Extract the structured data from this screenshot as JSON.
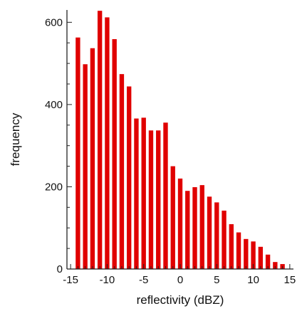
{
  "chart_data": {
    "type": "bar",
    "title": "",
    "xlabel": "reflectivity (dBZ)",
    "ylabel": "frequency",
    "xlim": [
      -15.5,
      15.5
    ],
    "ylim": [
      0,
      630
    ],
    "x_ticks": [
      -15,
      -10,
      -5,
      0,
      5,
      10,
      15
    ],
    "x_tick_labels": [
      "-15",
      "-10",
      "-5",
      "0",
      "5",
      "10",
      "15"
    ],
    "y_ticks": [
      0,
      200,
      400,
      600
    ],
    "y_tick_labels": [
      "0",
      "200",
      "400",
      "600"
    ],
    "bin_width": 1,
    "bar_color": "#e00000",
    "bins": [
      {
        "x": -14,
        "value": 563
      },
      {
        "x": -13,
        "value": 498
      },
      {
        "x": -12,
        "value": 537
      },
      {
        "x": -11,
        "value": 628
      },
      {
        "x": -10,
        "value": 612
      },
      {
        "x": -9,
        "value": 559
      },
      {
        "x": -8,
        "value": 474
      },
      {
        "x": -7,
        "value": 444
      },
      {
        "x": -6,
        "value": 366
      },
      {
        "x": -5,
        "value": 368
      },
      {
        "x": -4,
        "value": 337
      },
      {
        "x": -3,
        "value": 337
      },
      {
        "x": -2,
        "value": 356
      },
      {
        "x": -1,
        "value": 250
      },
      {
        "x": 0,
        "value": 220
      },
      {
        "x": 1,
        "value": 190
      },
      {
        "x": 2,
        "value": 199
      },
      {
        "x": 3,
        "value": 204
      },
      {
        "x": 4,
        "value": 176
      },
      {
        "x": 5,
        "value": 162
      },
      {
        "x": 6,
        "value": 142
      },
      {
        "x": 7,
        "value": 109
      },
      {
        "x": 8,
        "value": 89
      },
      {
        "x": 9,
        "value": 73
      },
      {
        "x": 10,
        "value": 67
      },
      {
        "x": 11,
        "value": 54
      },
      {
        "x": 12,
        "value": 35
      },
      {
        "x": 13,
        "value": 17
      },
      {
        "x": 14,
        "value": 12
      }
    ],
    "grid": false,
    "legend": "none"
  }
}
